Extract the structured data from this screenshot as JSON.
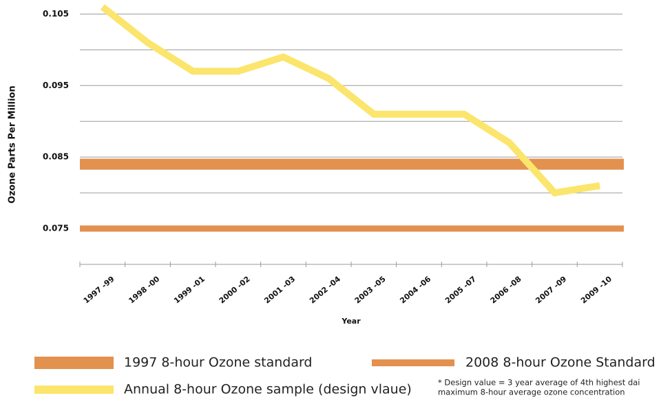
{
  "chart_data": {
    "type": "line",
    "y_axis_label": "Ozone Parts Per Million",
    "x_axis_label": "Year",
    "categories": [
      "1997 -99",
      "1998 -00",
      "1999 -01",
      "2000 -02",
      "2001 -03",
      "2002 -04",
      "2003 -05",
      "2004 -06",
      "2005 -07",
      "2006 -08",
      "2007 -09",
      "2009 -10"
    ],
    "series": [
      {
        "name": "Annual 8-hour Ozone sample (design vlaue)",
        "color": "#fbe56c",
        "values": [
          0.106,
          0.101,
          0.097,
          0.097,
          0.099,
          0.096,
          0.091,
          0.091,
          0.091,
          0.087,
          0.08,
          0.081
        ]
      }
    ],
    "reference_lines": [
      {
        "name": "1997 8-hour Ozone standard",
        "value": 0.084,
        "color": "#e3914f"
      },
      {
        "name": "2008 8-hour Ozone Standard",
        "value": 0.075,
        "color": "#e3914f"
      }
    ],
    "ylim": [
      0.07,
      0.106
    ],
    "yticks": [
      0.075,
      0.085,
      0.095,
      0.105
    ],
    "grid": true,
    "minor_grid": true,
    "annotation": [
      "* Design value = 3 year average of 4th highest dai",
      "maximum 8-hour average ozone concentration"
    ]
  }
}
